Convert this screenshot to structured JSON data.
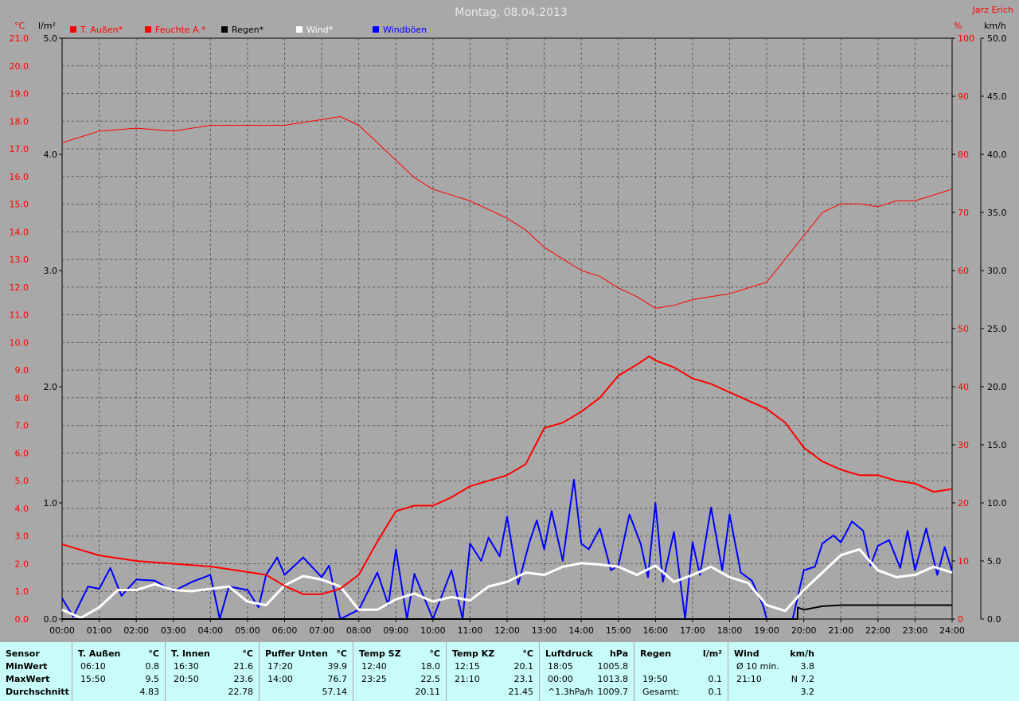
{
  "title": "Montag, 08.04.2013",
  "author": "Jarz Erich",
  "colors": {
    "temp": "#ff0000",
    "humidity": "#ff0000",
    "rain": "#000000",
    "wind": "#ffffff",
    "gusts": "#0000ff",
    "grid": "#5a5a5a",
    "plot_bg": "#a8a8a8",
    "stats_bg": "#c8fcf8"
  },
  "legend": [
    {
      "label": "T. Außen*",
      "color": "#ff0000",
      "text_color": "#ff0000"
    },
    {
      "label": "Feuchte A.*",
      "color": "#ff0000",
      "text_color": "#ff0000"
    },
    {
      "label": "Regen*",
      "color": "#000000",
      "text_color": "#000000"
    },
    {
      "label": "Wind*",
      "color": "#ffffff",
      "text_color": "#ffffff"
    },
    {
      "label": "Windböen",
      "color": "#0000ff",
      "text_color": "#0000ff"
    }
  ],
  "axes": {
    "temp_unit": "°C",
    "rain_unit": "l/m²",
    "humidity_unit": "%",
    "wind_unit": "km/h",
    "temp_ticks": [
      "21.0",
      "20.0",
      "19.0",
      "18.0",
      "17.0",
      "16.0",
      "15.0",
      "14.0",
      "13.0",
      "12.0",
      "11.0",
      "10.0",
      "9.0",
      "8.0",
      "7.0",
      "6.0",
      "5.0",
      "4.0",
      "3.0",
      "2.0",
      "1.0",
      "0.0"
    ],
    "rain_ticks": [
      "5.0",
      "4.0",
      "3.0",
      "2.0",
      "1.0",
      "0.0"
    ],
    "humidity_ticks": [
      "100",
      "90",
      "80",
      "70",
      "60",
      "50",
      "40",
      "30",
      "20",
      "10",
      "0"
    ],
    "wind_ticks": [
      "50.0",
      "45.0",
      "40.0",
      "35.0",
      "30.0",
      "25.0",
      "20.0",
      "15.0",
      "10.0",
      "5.0",
      "0.0"
    ],
    "time_ticks": [
      "00:00",
      "01:00",
      "02:00",
      "03:00",
      "04:00",
      "05:00",
      "06:00",
      "07:00",
      "08:00",
      "09:00",
      "10:00",
      "11:00",
      "12:00",
      "13:00",
      "14:00",
      "15:00",
      "16:00",
      "17:00",
      "18:00",
      "19:00",
      "20:00",
      "21:00",
      "22:00",
      "23:00",
      "24:00"
    ]
  },
  "chart_data": {
    "type": "line",
    "title": "Montag, 08.04.2013",
    "x_unit": "hour",
    "xlim": [
      0,
      24
    ],
    "axes_ranges": {
      "temp_c": [
        0,
        21
      ],
      "rain_mm": [
        0,
        5
      ],
      "humidity_pct": [
        0,
        100
      ],
      "wind_kmh": [
        0,
        50
      ]
    },
    "grid": true,
    "legend_position": "top-left",
    "series": [
      {
        "name": "T. Außen*",
        "axis": "temp_c",
        "color": "#ff0000",
        "points": [
          [
            0,
            2.7
          ],
          [
            0.5,
            2.5
          ],
          [
            1,
            2.3
          ],
          [
            1.5,
            2.2
          ],
          [
            2,
            2.1
          ],
          [
            3,
            2.0
          ],
          [
            4,
            1.9
          ],
          [
            4.5,
            1.8
          ],
          [
            5,
            1.7
          ],
          [
            5.5,
            1.6
          ],
          [
            6,
            1.2
          ],
          [
            6.5,
            0.9
          ],
          [
            7,
            0.9
          ],
          [
            7.5,
            1.1
          ],
          [
            8,
            1.6
          ],
          [
            8.5,
            2.8
          ],
          [
            9,
            3.9
          ],
          [
            9.5,
            4.1
          ],
          [
            10,
            4.1
          ],
          [
            10.5,
            4.4
          ],
          [
            11,
            4.8
          ],
          [
            11.5,
            5.0
          ],
          [
            12,
            5.2
          ],
          [
            12.5,
            5.6
          ],
          [
            13,
            6.9
          ],
          [
            13.5,
            7.1
          ],
          [
            14,
            7.5
          ],
          [
            14.5,
            8.0
          ],
          [
            15,
            8.8
          ],
          [
            15.5,
            9.2
          ],
          [
            15.83,
            9.5
          ],
          [
            16,
            9.35
          ],
          [
            16.5,
            9.1
          ],
          [
            17,
            8.7
          ],
          [
            17.5,
            8.5
          ],
          [
            18,
            8.2
          ],
          [
            18.5,
            7.9
          ],
          [
            19,
            7.6
          ],
          [
            19.5,
            7.1
          ],
          [
            20,
            6.2
          ],
          [
            20.5,
            5.7
          ],
          [
            21,
            5.4
          ],
          [
            21.5,
            5.2
          ],
          [
            22,
            5.2
          ],
          [
            22.5,
            5.0
          ],
          [
            23,
            4.9
          ],
          [
            23.5,
            4.6
          ],
          [
            24,
            4.7
          ]
        ]
      },
      {
        "name": "Feuchte A.*",
        "axis": "humidity_pct",
        "color": "#ff0000",
        "points": [
          [
            0,
            82
          ],
          [
            0.5,
            83
          ],
          [
            1,
            84
          ],
          [
            2,
            84.5
          ],
          [
            3,
            84
          ],
          [
            4,
            85
          ],
          [
            5,
            85
          ],
          [
            6,
            85
          ],
          [
            6.5,
            85.5
          ],
          [
            7,
            86
          ],
          [
            7.5,
            86.5
          ],
          [
            8,
            85
          ],
          [
            8.5,
            82
          ],
          [
            9,
            79
          ],
          [
            9.5,
            76
          ],
          [
            10,
            74
          ],
          [
            11,
            72
          ],
          [
            12,
            69
          ],
          [
            12.5,
            67
          ],
          [
            13,
            64
          ],
          [
            13.5,
            62
          ],
          [
            14,
            60
          ],
          [
            14.5,
            59
          ],
          [
            15,
            57
          ],
          [
            15.5,
            55.5
          ],
          [
            16,
            53.5
          ],
          [
            16.5,
            54
          ],
          [
            17,
            55
          ],
          [
            17.5,
            55.5
          ],
          [
            18,
            56
          ],
          [
            18.5,
            57
          ],
          [
            19,
            58
          ],
          [
            19.5,
            62
          ],
          [
            20,
            66
          ],
          [
            20.5,
            70
          ],
          [
            21,
            71.5
          ],
          [
            21.5,
            71.5
          ],
          [
            22,
            71
          ],
          [
            22.5,
            72
          ],
          [
            23,
            72
          ],
          [
            23.5,
            73
          ],
          [
            24,
            74
          ]
        ]
      },
      {
        "name": "Regen*",
        "axis": "rain_mm",
        "color": "#000000",
        "points": [
          [
            0,
            0
          ],
          [
            19.83,
            0
          ],
          [
            19.84,
            0.1
          ],
          [
            20,
            0.08
          ],
          [
            20.5,
            0.11
          ],
          [
            21,
            0.12
          ],
          [
            24,
            0.12
          ]
        ]
      },
      {
        "name": "Wind*",
        "axis": "wind_kmh",
        "color": "#ffffff",
        "points": [
          [
            0,
            0.8
          ],
          [
            0.5,
            0.1
          ],
          [
            1,
            1.0
          ],
          [
            1.5,
            2.5
          ],
          [
            2,
            2.5
          ],
          [
            2.5,
            3.0
          ],
          [
            3,
            2.5
          ],
          [
            3.5,
            2.4
          ],
          [
            4,
            2.6
          ],
          [
            4.5,
            2.8
          ],
          [
            5,
            1.5
          ],
          [
            5.5,
            1.2
          ],
          [
            6,
            2.9
          ],
          [
            6.5,
            3.7
          ],
          [
            7,
            3.4
          ],
          [
            7.5,
            2.8
          ],
          [
            8,
            0.8
          ],
          [
            8.5,
            0.8
          ],
          [
            9,
            1.7
          ],
          [
            9.5,
            2.2
          ],
          [
            10,
            1.5
          ],
          [
            10.5,
            1.9
          ],
          [
            11,
            1.6
          ],
          [
            11.5,
            2.8
          ],
          [
            12,
            3.2
          ],
          [
            12.5,
            4.0
          ],
          [
            13,
            3.8
          ],
          [
            13.5,
            4.5
          ],
          [
            14,
            4.8
          ],
          [
            14.5,
            4.7
          ],
          [
            15,
            4.5
          ],
          [
            15.5,
            3.8
          ],
          [
            16,
            4.6
          ],
          [
            16.5,
            3.2
          ],
          [
            17,
            3.8
          ],
          [
            17.5,
            4.5
          ],
          [
            18,
            3.6
          ],
          [
            18.5,
            3.1
          ],
          [
            19,
            1.2
          ],
          [
            19.5,
            0.7
          ],
          [
            20,
            2.5
          ],
          [
            20.5,
            4.0
          ],
          [
            21,
            5.5
          ],
          [
            21.5,
            6.0
          ],
          [
            22,
            4.2
          ],
          [
            22.5,
            3.6
          ],
          [
            23,
            3.8
          ],
          [
            23.5,
            4.5
          ],
          [
            24,
            4.0
          ]
        ]
      },
      {
        "name": "Windböen",
        "axis": "wind_kmh",
        "color": "#0000ff",
        "points": [
          [
            0,
            1.8
          ],
          [
            0.3,
            0.2
          ],
          [
            0.7,
            2.8
          ],
          [
            1,
            2.6
          ],
          [
            1.3,
            4.4
          ],
          [
            1.6,
            2.0
          ],
          [
            2,
            3.4
          ],
          [
            2.5,
            3.3
          ],
          [
            3,
            2.4
          ],
          [
            3.5,
            3.2
          ],
          [
            4,
            3.8
          ],
          [
            4.25,
            0
          ],
          [
            4.5,
            2.8
          ],
          [
            5,
            2.5
          ],
          [
            5.3,
            1.0
          ],
          [
            5.5,
            3.8
          ],
          [
            5.8,
            5.3
          ],
          [
            6,
            3.8
          ],
          [
            6.5,
            5.3
          ],
          [
            7,
            3.6
          ],
          [
            7.2,
            4.6
          ],
          [
            7.5,
            0
          ],
          [
            8,
            0.8
          ],
          [
            8.5,
            4.0
          ],
          [
            8.8,
            1.2
          ],
          [
            9,
            6.0
          ],
          [
            9.3,
            0
          ],
          [
            9.5,
            3.9
          ],
          [
            10,
            0
          ],
          [
            10.5,
            4.2
          ],
          [
            10.8,
            0
          ],
          [
            11,
            6.5
          ],
          [
            11.3,
            5.0
          ],
          [
            11.5,
            7.0
          ],
          [
            11.8,
            5.4
          ],
          [
            12,
            8.8
          ],
          [
            12.3,
            3.0
          ],
          [
            12.6,
            6.6
          ],
          [
            12.8,
            8.5
          ],
          [
            13,
            6.0
          ],
          [
            13.2,
            9.3
          ],
          [
            13.5,
            5.0
          ],
          [
            13.8,
            12.0
          ],
          [
            14,
            6.5
          ],
          [
            14.2,
            6.0
          ],
          [
            14.5,
            7.8
          ],
          [
            14.8,
            4.2
          ],
          [
            15,
            4.6
          ],
          [
            15.3,
            9.0
          ],
          [
            15.6,
            6.5
          ],
          [
            15.8,
            3.6
          ],
          [
            16,
            10.0
          ],
          [
            16.2,
            3.2
          ],
          [
            16.5,
            7.5
          ],
          [
            16.8,
            0
          ],
          [
            17,
            6.6
          ],
          [
            17.2,
            3.8
          ],
          [
            17.5,
            9.6
          ],
          [
            17.8,
            4.2
          ],
          [
            18,
            9.0
          ],
          [
            18.3,
            4.0
          ],
          [
            18.6,
            3.3
          ],
          [
            18.9,
            1.2
          ],
          [
            19,
            0
          ],
          [
            19.5,
            0
          ],
          [
            19.7,
            0
          ],
          [
            20,
            4.2
          ],
          [
            20.3,
            4.5
          ],
          [
            20.5,
            6.5
          ],
          [
            20.8,
            7.2
          ],
          [
            21,
            6.6
          ],
          [
            21.3,
            8.4
          ],
          [
            21.6,
            7.6
          ],
          [
            21.8,
            4.6
          ],
          [
            22,
            6.3
          ],
          [
            22.3,
            6.8
          ],
          [
            22.6,
            4.4
          ],
          [
            22.8,
            7.6
          ],
          [
            23,
            4.2
          ],
          [
            23.3,
            7.8
          ],
          [
            23.6,
            3.8
          ],
          [
            23.8,
            6.2
          ],
          [
            24,
            4.1
          ]
        ]
      }
    ]
  },
  "stats": {
    "columns": [
      {
        "title": "Sensor",
        "unit": "",
        "rows": [
          [
            "MinWert",
            "",
            ""
          ],
          [
            "MaxWert",
            "",
            ""
          ],
          [
            "Durchschnitt",
            "",
            ""
          ]
        ]
      },
      {
        "title": "T. Außen",
        "unit": "°C",
        "rows": [
          [
            "06:10",
            "0.8"
          ],
          [
            "15:50",
            "9.5"
          ],
          [
            "",
            "4.83"
          ]
        ]
      },
      {
        "title": "T. Innen",
        "unit": "°C",
        "rows": [
          [
            "16:30",
            "21.6"
          ],
          [
            "20:50",
            "23.6"
          ],
          [
            "",
            "22.78"
          ]
        ]
      },
      {
        "title": "Puffer Unten",
        "unit": "°C",
        "rows": [
          [
            "17:20",
            "39.9"
          ],
          [
            "14:00",
            "76.7"
          ],
          [
            "",
            "57.14"
          ]
        ]
      },
      {
        "title": "Temp SZ",
        "unit": "°C",
        "rows": [
          [
            "12:40",
            "18.0"
          ],
          [
            "23:25",
            "22.5"
          ],
          [
            "",
            "20.11"
          ]
        ]
      },
      {
        "title": "Temp KZ",
        "unit": "°C",
        "rows": [
          [
            "12:15",
            "20.1"
          ],
          [
            "21:10",
            "23.1"
          ],
          [
            "",
            "21.45"
          ]
        ]
      },
      {
        "title": "Luftdruck",
        "unit": "hPa",
        "rows": [
          [
            "18:05",
            "1005.8"
          ],
          [
            "00:00",
            "1013.8"
          ],
          [
            "^1.3hPa/h",
            "1009.7"
          ]
        ]
      },
      {
        "title": "Regen",
        "unit": "l/m²",
        "rows": [
          [
            "",
            ""
          ],
          [
            "19:50",
            "0.1"
          ],
          [
            "Gesamt:",
            "0.1"
          ]
        ]
      },
      {
        "title": "Wind",
        "unit": "km/h",
        "rows": [
          [
            "Ø 10 min.",
            "3.8"
          ],
          [
            "21:10",
            "N 7.2"
          ],
          [
            "",
            "3.2"
          ]
        ]
      }
    ]
  }
}
